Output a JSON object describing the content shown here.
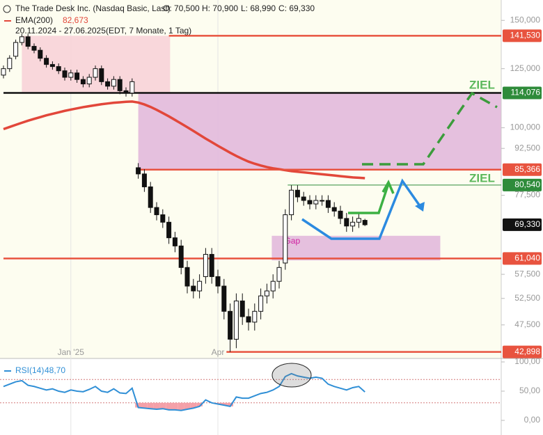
{
  "chart_data": {
    "type": "candlestick",
    "title": "The Trade Desk Inc. (Nasdaq Basic, Last)",
    "quote": [
      "O: 70,500",
      "H: 70,900",
      "L: 68,990",
      "C: 69,330"
    ],
    "period": "20.11.2024 - 27.06.2025",
    "period_note": "(EDT, 7 Monate, 1 Tag)",
    "log_scale": true,
    "ylim": [
      41.85,
      162
    ],
    "yticks": [
      {
        "value": 150,
        "label": "150,000"
      },
      {
        "value": 125,
        "label": "125,000"
      },
      {
        "value": 100,
        "label": "100,000"
      },
      {
        "value": 92.5,
        "label": "92,500"
      },
      {
        "value": 77.5,
        "label": "77,500"
      },
      {
        "value": 57.5,
        "label": "57,500"
      },
      {
        "value": 52.5,
        "label": "52,500"
      },
      {
        "value": 47.5,
        "label": "47,500"
      }
    ],
    "categories": [
      null,
      null,
      null,
      null,
      null,
      null,
      null,
      null,
      null,
      null,
      null,
      "Jan '25",
      null,
      null,
      null,
      null,
      null,
      null,
      null,
      null,
      null,
      null,
      null,
      null,
      null,
      null,
      null,
      null,
      null,
      null,
      null,
      null,
      null,
      null,
      null,
      "Apr",
      null,
      null,
      null,
      null,
      null,
      null,
      null,
      null,
      null,
      null,
      null,
      null,
      null,
      null,
      null,
      null,
      null,
      null,
      null,
      null,
      null,
      null,
      null,
      null
    ],
    "open": [
      122,
      125,
      131,
      138,
      141,
      136,
      134,
      130,
      127,
      126,
      124,
      121,
      123,
      120,
      118,
      121,
      125,
      119,
      117,
      120,
      115,
      114,
      86,
      84,
      80,
      74,
      72,
      70,
      66,
      64,
      59,
      55,
      54,
      57,
      62,
      57,
      55,
      50,
      45,
      52,
      49,
      48,
      50,
      53,
      54,
      56,
      60,
      72,
      79,
      77,
      76,
      75,
      76,
      76,
      74,
      73,
      71,
      69,
      70,
      70.5
    ],
    "high": [
      126.5,
      131.5,
      139.5,
      142.5,
      142.5,
      137.5,
      135.5,
      131.5,
      128.5,
      127.5,
      125.5,
      124.5,
      124.5,
      121.5,
      122.5,
      126.5,
      126.5,
      120.5,
      121.5,
      121.5,
      116.5,
      120.5,
      87.5,
      85.5,
      81.5,
      75.5,
      73.5,
      71.5,
      67.5,
      65.5,
      60.5,
      56.5,
      57.5,
      63.5,
      63.5,
      58.5,
      56.5,
      51.5,
      53.5,
      53.5,
      50.5,
      51.5,
      54.5,
      55.5,
      57.5,
      60.5,
      73.5,
      80.5,
      80.5,
      78.5,
      77.5,
      77.5,
      77.5,
      77.5,
      75.5,
      74.5,
      72.5,
      71.5,
      72.5,
      70.9
    ],
    "low": [
      120.5,
      123.5,
      129.5,
      136.5,
      134.5,
      132.5,
      128.5,
      125.5,
      124.5,
      122.5,
      119.5,
      119.5,
      118.5,
      116.5,
      116.5,
      119.5,
      117.5,
      115.5,
      115.5,
      113.5,
      112.5,
      112.5,
      82.5,
      78.5,
      72.5,
      70.5,
      68.5,
      64.5,
      62.5,
      57.5,
      53.5,
      52.5,
      52.5,
      55.5,
      55.5,
      53.5,
      48.5,
      42.9,
      43.5,
      47.5,
      46.5,
      46.5,
      48.5,
      51.5,
      52.5,
      54.5,
      58.5,
      70.5,
      75.5,
      74.5,
      73.5,
      73.5,
      74.5,
      72.5,
      71.5,
      69.5,
      67.5,
      67.5,
      68.5,
      68.99
    ],
    "close": [
      125,
      130,
      138,
      141,
      136,
      134,
      130,
      127,
      126,
      124,
      121,
      123,
      120,
      118,
      121,
      125,
      119,
      117,
      120,
      115,
      114,
      119,
      84,
      80,
      74,
      72,
      70,
      66,
      64,
      59,
      55,
      54,
      56,
      62,
      57,
      55,
      50,
      45,
      52,
      49,
      48,
      50,
      53,
      54,
      56,
      59,
      72,
      79,
      77,
      76,
      75,
      76,
      76,
      74,
      73,
      71,
      69,
      70,
      71,
      69.33
    ],
    "series": [
      {
        "name": "EMA(200)",
        "color": "#e2473a",
        "last_label": "82,673",
        "values": [
          99.5,
          100.3,
          101.1,
          101.9,
          102.7,
          103.4,
          104.1,
          104.8,
          105.4,
          106,
          106.6,
          107.1,
          107.6,
          108.1,
          108.5,
          108.9,
          109.3,
          109.6,
          109.9,
          110.1,
          110.3,
          110.4,
          110,
          109.2,
          108.2,
          107,
          105.7,
          104.4,
          103,
          101.6,
          100.2,
          98.8,
          97.4,
          96,
          94.7,
          93.4,
          92.2,
          91,
          89.9,
          88.9,
          88,
          87.3,
          86.7,
          86.2,
          85.8,
          85.5,
          85.2,
          84.9,
          84.7,
          84.5,
          84.3,
          84.1,
          83.9,
          83.7,
          83.5,
          83.3,
          83.1,
          82.9,
          82.8,
          82.673
        ]
      }
    ],
    "levels": [
      {
        "value": 141.53,
        "label": "141,530",
        "color": "#e8533f",
        "from": 27
      },
      {
        "value": 114.076,
        "label": "114,076",
        "color": "#2e8b3a",
        "line": "#111111",
        "from": 0
      },
      {
        "value": 85.366,
        "label": "85,366",
        "color": "#e8533f",
        "from": 21.7
      },
      {
        "value": 80.54,
        "label": "80,540",
        "color": "#2e8b3a",
        "from": 46.4
      },
      {
        "value": 69.33,
        "label": "69,330",
        "color": "#111111"
      },
      {
        "value": 61.04,
        "label": "61,040",
        "color": "#e8533f",
        "from": 0
      },
      {
        "value": 42.898,
        "label": "42,898",
        "color": "#e8533f",
        "from": 36.4
      }
    ],
    "zones": [
      {
        "from": 141.53,
        "to": 114.076,
        "color": "#f8d3d8",
        "start": 3,
        "end": 27.2
      },
      {
        "from": 114.076,
        "to": 85.366,
        "color": "#e2b9dc",
        "start": 22,
        "end": 81.2
      },
      {
        "from": 66.5,
        "to": 60.6,
        "color": "#e2b9dc",
        "start": 43.8,
        "end": 71.3,
        "label": "Gap"
      }
    ],
    "annotations": [
      "ZIEL",
      "ZIEL"
    ],
    "rsi": {
      "name": "RSI(14)",
      "last_label": "48,70",
      "color": "#2f8fd6",
      "ylim": [
        0,
        100
      ],
      "yticks": [
        {
          "value": 100,
          "label": "100,00"
        },
        {
          "value": 50,
          "label": "50,00"
        },
        {
          "value": 0,
          "label": "0,00"
        }
      ],
      "bands": [
        70,
        30
      ],
      "values": [
        58,
        62,
        66,
        68,
        60,
        58,
        55,
        52,
        54,
        50,
        48,
        52,
        50,
        49,
        53,
        58,
        50,
        48,
        54,
        47,
        46,
        55,
        22,
        21,
        20,
        19,
        20,
        18,
        18,
        17,
        19,
        21,
        24,
        35,
        30,
        28,
        26,
        24,
        40,
        38,
        38,
        42,
        46,
        48,
        52,
        58,
        75,
        80,
        76,
        74,
        72,
        74,
        72,
        62,
        58,
        55,
        52,
        56,
        58,
        48.7
      ]
    }
  }
}
